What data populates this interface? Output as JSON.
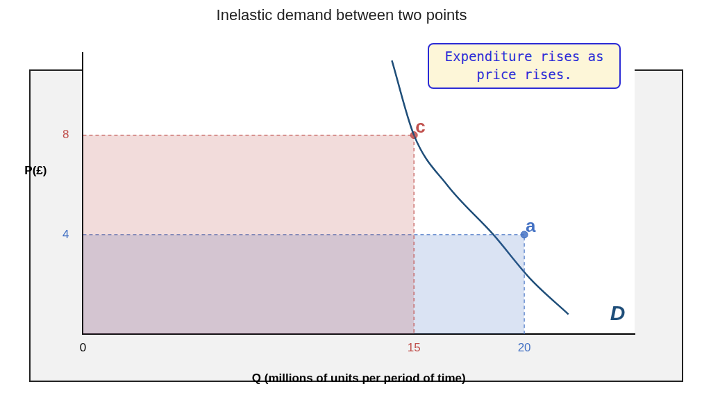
{
  "chart_data": {
    "type": "line",
    "title": "Inelastic demand between two points",
    "annotation": "Expenditure rises as price rises.",
    "x_label": "Q (millions of units per period of time)",
    "y_label": "P(£)",
    "xlim": [
      0,
      25
    ],
    "ylim": [
      0,
      11.3
    ],
    "xticks": [
      0,
      15,
      20
    ],
    "yticks": [
      4,
      8
    ],
    "grid": false,
    "series": [
      {
        "name": "D",
        "color": "#1f4e79",
        "x": [
          14,
          15,
          16.5,
          18.6,
          20.3,
          22
        ],
        "values": [
          11,
          8,
          6,
          4,
          2.2,
          0.8
        ]
      }
    ],
    "points": [
      {
        "label": "c",
        "x": 15,
        "y": 8,
        "color": "#c0504d"
      },
      {
        "label": "a",
        "x": 20,
        "y": 4,
        "color": "#4472c4"
      }
    ]
  }
}
